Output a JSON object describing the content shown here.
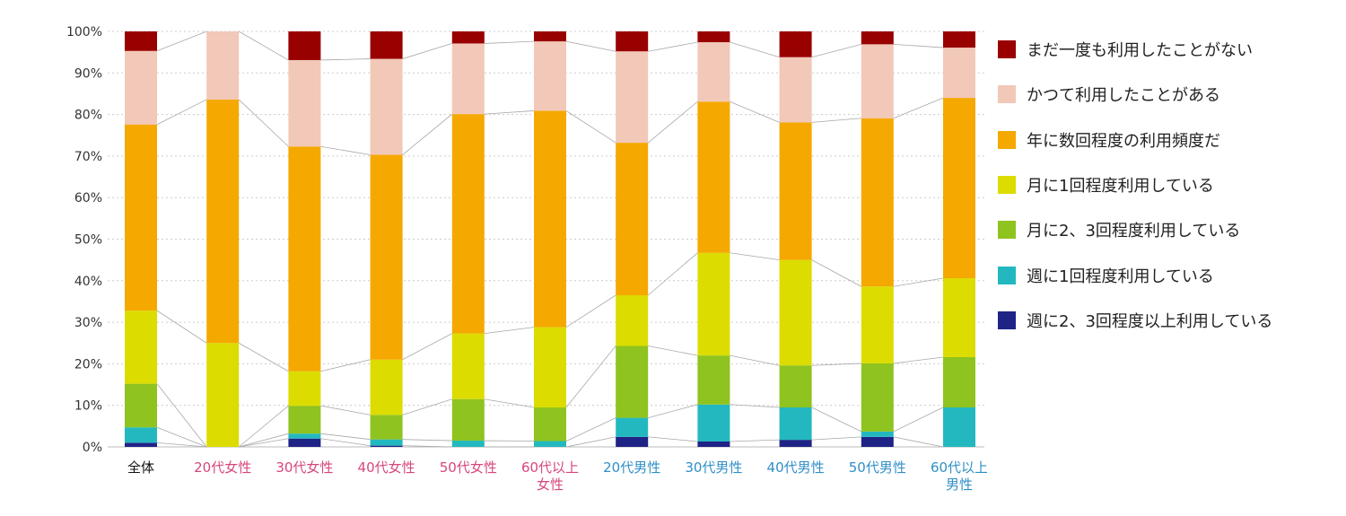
{
  "chart_data": {
    "type": "bar",
    "stacked": true,
    "title": "",
    "xlabel": "",
    "ylabel": "",
    "ylim": [
      0,
      100
    ],
    "yticks": [
      0,
      10,
      20,
      30,
      40,
      50,
      60,
      70,
      80,
      90,
      100
    ],
    "ytick_labels": [
      "0%",
      "10%",
      "20%",
      "30%",
      "40%",
      "50%",
      "60%",
      "70%",
      "80%",
      "90%",
      "100%"
    ],
    "grid": true,
    "legend_position": "right",
    "categories": [
      {
        "lines": [
          "全体"
        ],
        "color": "#111111"
      },
      {
        "lines": [
          "20代女性"
        ],
        "color": "#d6467e"
      },
      {
        "lines": [
          "30代女性"
        ],
        "color": "#d6467e"
      },
      {
        "lines": [
          "40代女性"
        ],
        "color": "#d6467e"
      },
      {
        "lines": [
          "50代女性"
        ],
        "color": "#d6467e"
      },
      {
        "lines": [
          "60代以上",
          "女性"
        ],
        "color": "#d6467e"
      },
      {
        "lines": [
          "20代男性"
        ],
        "color": "#2f8fc7"
      },
      {
        "lines": [
          "30代男性"
        ],
        "color": "#2f8fc7"
      },
      {
        "lines": [
          "40代男性"
        ],
        "color": "#2f8fc7"
      },
      {
        "lines": [
          "50代男性"
        ],
        "color": "#2f8fc7"
      },
      {
        "lines": [
          "60代以上",
          "男性"
        ],
        "color": "#2f8fc7"
      }
    ],
    "series": [
      {
        "name": "週に2、3回程度以上利用している",
        "color": "#1f2386",
        "values": [
          1.0,
          0,
          2.0,
          0.3,
          0,
          0,
          2.4,
          1.3,
          1.7,
          2.4,
          0
        ]
      },
      {
        "name": "週に1回程度利用している",
        "color": "#23b8c0",
        "values": [
          3.7,
          0,
          1.2,
          1.5,
          1.5,
          1.4,
          4.6,
          8.9,
          7.8,
          1.3,
          9.5
        ]
      },
      {
        "name": "月に2、3回程度利用している",
        "color": "#8fc31f",
        "values": [
          10.5,
          0,
          6.7,
          5.9,
          10.0,
          8.1,
          17.3,
          11.8,
          10.1,
          16.4,
          12.1
        ]
      },
      {
        "name": "月に1回程度利用している",
        "color": "#dcdc00",
        "values": [
          17.6,
          25.0,
          8.3,
          13.3,
          15.8,
          19.3,
          12.2,
          24.7,
          25.4,
          18.5,
          19.0
        ]
      },
      {
        "name": "年に数回程度の利用頻度だ",
        "color": "#f5a800",
        "values": [
          44.8,
          58.6,
          54.1,
          49.3,
          52.8,
          52.1,
          36.7,
          36.4,
          33.1,
          40.5,
          43.4
        ]
      },
      {
        "name": "かつて利用したことがある",
        "color": "#f2c8b8",
        "values": [
          17.7,
          16.4,
          20.8,
          23.1,
          17.0,
          16.7,
          22.0,
          14.3,
          15.7,
          17.8,
          12.1
        ]
      },
      {
        "name": "まだ一度も利用したことがない",
        "color": "#990000",
        "values": [
          4.7,
          0,
          6.9,
          6.6,
          2.9,
          2.4,
          4.8,
          2.6,
          6.2,
          3.1,
          3.9
        ]
      }
    ]
  }
}
